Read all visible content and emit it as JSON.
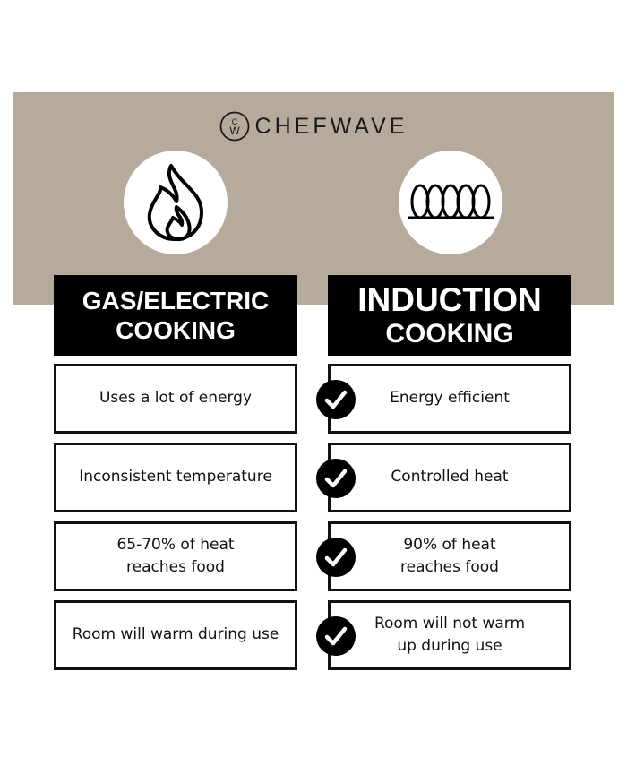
{
  "brand": "CHEFWAVE",
  "icons": {
    "left": "flame-icon",
    "right": "coil-icon",
    "check": "checkmark-icon"
  },
  "colors": {
    "band": "#b6aa9c",
    "header": "#000000"
  },
  "left": {
    "title1": "GAS/ELECTRIC",
    "title2": "COOKING",
    "rows": [
      "Uses a lot of energy",
      "Inconsistent temperature",
      "65-70% of heat\nreaches food",
      "Room will warm during use"
    ]
  },
  "right": {
    "title1": "INDUCTION",
    "title2": "COOKING",
    "rows": [
      "Energy efficient",
      "Controlled heat",
      "90% of heat\nreaches food",
      "Room will not warm\nup during use"
    ]
  }
}
